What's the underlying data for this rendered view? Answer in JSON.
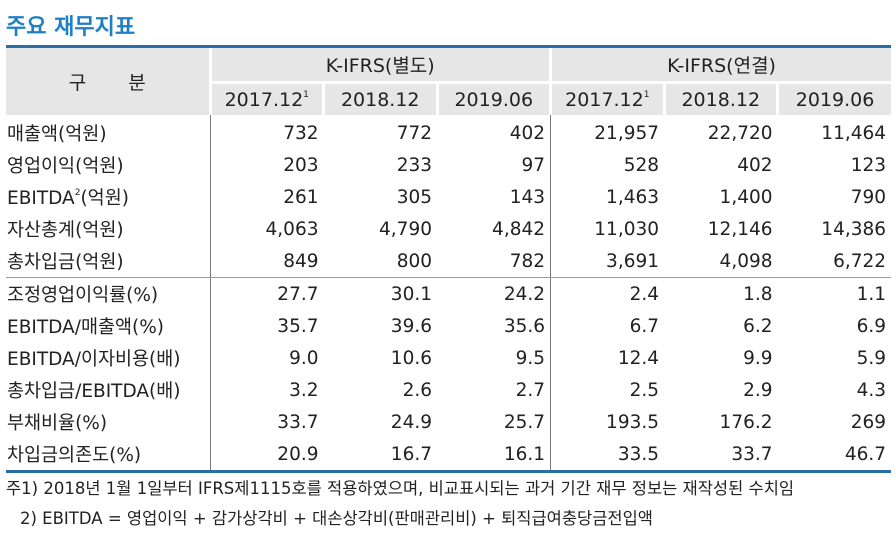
{
  "title": "주요 재무지표",
  "colors": {
    "accent": "#1f7fc4",
    "rule": "#2b6ea6",
    "header_bg": "#e6e6e6"
  },
  "table": {
    "label_header": "구 분",
    "groups": [
      {
        "label": "K-IFRS(별도)",
        "periods": [
          "2017.12",
          "2018.12",
          "2019.06"
        ],
        "period_sup": [
          "1",
          "",
          ""
        ]
      },
      {
        "label": "K-IFRS(연결)",
        "periods": [
          "2017.12",
          "2018.12",
          "2019.06"
        ],
        "period_sup": [
          "1",
          "",
          ""
        ]
      }
    ],
    "rows_group1": [
      {
        "label": "매출액(억원)",
        "values": [
          "732",
          "772",
          "402",
          "21,957",
          "22,720",
          "11,464"
        ]
      },
      {
        "label": "영업이익(억원)",
        "values": [
          "203",
          "233",
          "97",
          "528",
          "402",
          "123"
        ]
      },
      {
        "label": "EBITDA",
        "label_sup": "2",
        "label_suffix": "(억원)",
        "values": [
          "261",
          "305",
          "143",
          "1,463",
          "1,400",
          "790"
        ]
      },
      {
        "label": "자산총계(억원)",
        "values": [
          "4,063",
          "4,790",
          "4,842",
          "11,030",
          "12,146",
          "14,386"
        ]
      },
      {
        "label": "총차입금(억원)",
        "values": [
          "849",
          "800",
          "782",
          "3,691",
          "4,098",
          "6,722"
        ]
      }
    ],
    "rows_group2": [
      {
        "label": "조정영업이익률(%)",
        "values": [
          "27.7",
          "30.1",
          "24.2",
          "2.4",
          "1.8",
          "1.1"
        ]
      },
      {
        "label": "EBITDA/매출액(%)",
        "values": [
          "35.7",
          "39.6",
          "35.6",
          "6.7",
          "6.2",
          "6.9"
        ]
      },
      {
        "label": "EBITDA/이자비용(배)",
        "values": [
          "9.0",
          "10.6",
          "9.5",
          "12.4",
          "9.9",
          "5.9"
        ]
      },
      {
        "label": "총차입금/EBITDA(배)",
        "values": [
          "3.2",
          "2.6",
          "2.7",
          "2.5",
          "2.9",
          "4.3"
        ]
      },
      {
        "label": "부채비율(%)",
        "values": [
          "33.7",
          "24.9",
          "25.7",
          "193.5",
          "176.2",
          "269"
        ]
      },
      {
        "label": "차입금의존도(%)",
        "values": [
          "20.9",
          "16.7",
          "16.1",
          "33.5",
          "33.7",
          "46.7"
        ]
      }
    ]
  },
  "notes": [
    "주1) 2018년 1월 1일부터 IFRS제1115호를 적용하였으며, 비교표시되는 과거 기간 재무 정보는 재작성된 수치임",
    "2) EBITDA = 영업이익 + 감가상각비 + 대손상각비(판매관리비) + 퇴직급여충당금전입액"
  ]
}
